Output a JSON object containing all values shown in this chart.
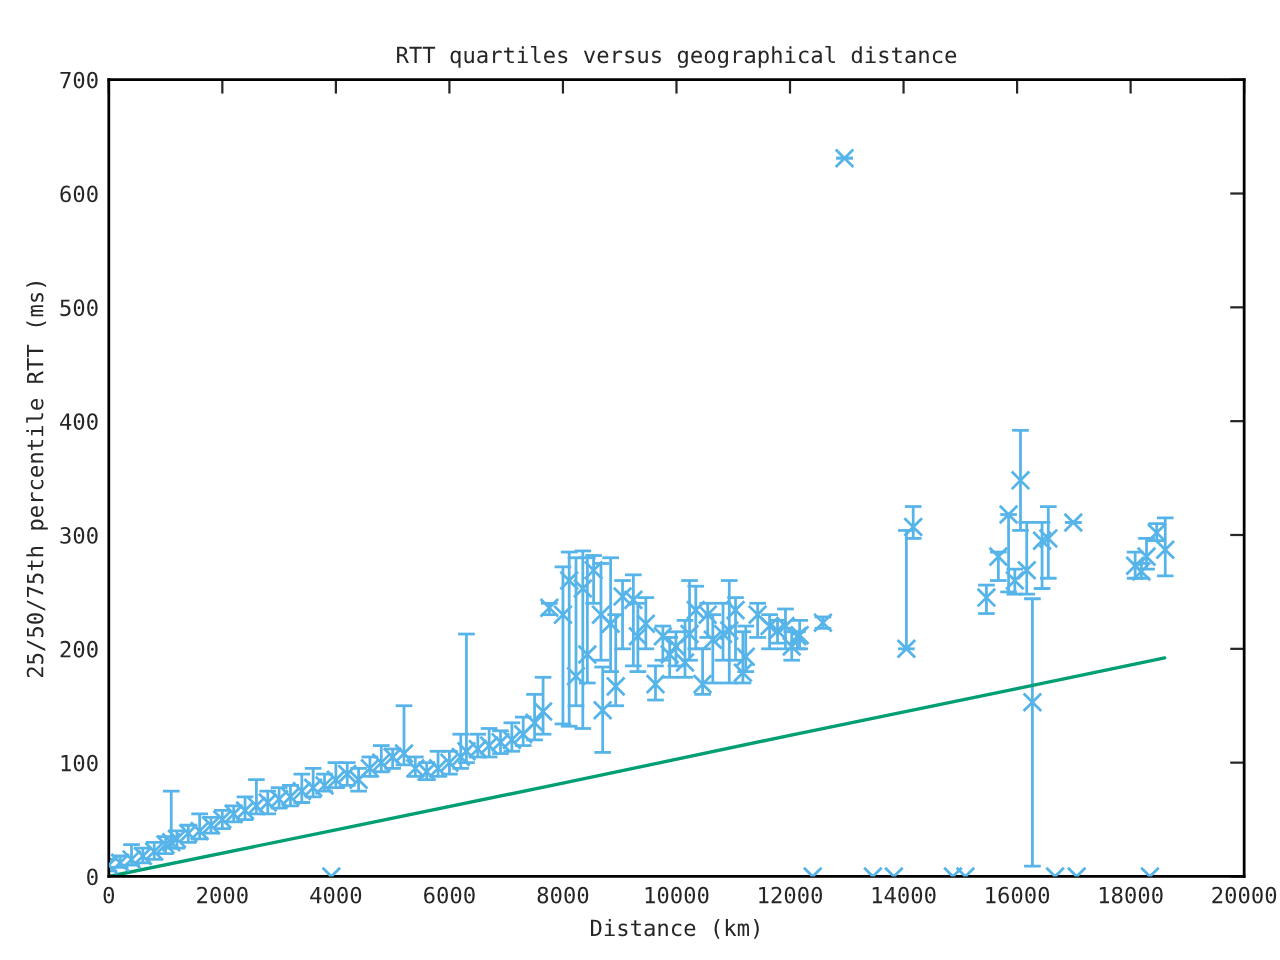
{
  "chart_data": {
    "type": "scatter",
    "title": "RTT quartiles versus geographical distance",
    "xlabel": "Distance (km)",
    "ylabel": "25/50/75th percentile RTT (ms)",
    "xlim": [
      0,
      20000
    ],
    "xticks": [
      0,
      2000,
      4000,
      6000,
      8000,
      10000,
      12000,
      14000,
      16000,
      18000,
      20000
    ],
    "ylim": [
      0,
      700
    ],
    "yticks": [
      0,
      100,
      200,
      300,
      400,
      500,
      600,
      700
    ],
    "grid": false,
    "series": [
      {
        "color": "#56b4e9",
        "marker": "cross",
        "x": [
          0,
          200,
          400,
          600,
          800,
          1000,
          1100,
          1200,
          1400,
          1600,
          1800,
          2000,
          2200,
          2400,
          2600,
          2800,
          3000,
          3200,
          3400,
          3600,
          3800,
          4000,
          4200,
          4400,
          4600,
          4800,
          5000,
          5200,
          5400,
          5600,
          5800,
          6000,
          6200,
          6300,
          6500,
          6700,
          6900,
          7100,
          7300,
          7500,
          7650,
          7760,
          8000,
          8110,
          8230,
          8350,
          8430,
          8540,
          8670,
          8700,
          8840,
          8930,
          9050,
          9240,
          9320,
          9460,
          9630,
          9760,
          9880,
          9990,
          10150,
          10230,
          10340,
          10460,
          10550,
          10640,
          10820,
          10930,
          11040,
          11170,
          11220,
          11430,
          11640,
          11780,
          11920,
          12030,
          12130,
          12170,
          12580,
          12960,
          14050,
          14170,
          15460,
          15670,
          15850,
          15960,
          16060,
          16170,
          16270,
          16440,
          16550,
          16990,
          18080,
          18190,
          18280,
          18460,
          18610,
          3920,
          12400,
          13460,
          13830,
          14870,
          15090,
          16670,
          17050,
          18340
        ],
        "values": [
          10,
          12,
          15,
          18,
          22,
          28,
          30,
          33,
          38,
          40,
          45,
          50,
          55,
          58,
          62,
          65,
          68,
          70,
          75,
          78,
          80,
          85,
          90,
          85,
          95,
          100,
          105,
          108,
          95,
          92,
          95,
          100,
          105,
          110,
          112,
          115,
          118,
          120,
          125,
          135,
          145,
          236,
          230,
          260,
          176,
          253,
          195,
          269,
          230,
          146,
          222,
          167,
          246,
          243,
          211,
          222,
          169,
          211,
          195,
          202,
          188,
          213,
          234,
          169,
          230,
          208,
          213,
          216,
          234,
          179,
          193,
          230,
          220,
          216,
          220,
          202,
          211,
          212,
          223,
          631,
          200,
          307,
          245,
          281,
          318,
          260,
          348,
          269,
          153,
          295,
          297,
          311,
          273,
          268,
          281,
          302,
          287,
          0,
          0,
          0,
          0,
          0,
          0,
          0,
          0,
          0
        ],
        "errors": [
          [
            5,
            15
          ],
          [
            8,
            18
          ],
          [
            10,
            28
          ],
          [
            12,
            25
          ],
          [
            15,
            30
          ],
          [
            20,
            35
          ],
          [
            25,
            75
          ],
          [
            25,
            40
          ],
          [
            30,
            45
          ],
          [
            33,
            55
          ],
          [
            38,
            52
          ],
          [
            42,
            58
          ],
          [
            48,
            62
          ],
          [
            50,
            70
          ],
          [
            55,
            85
          ],
          [
            55,
            75
          ],
          [
            60,
            78
          ],
          [
            62,
            80
          ],
          [
            65,
            90
          ],
          [
            70,
            95
          ],
          [
            75,
            90
          ],
          [
            78,
            100
          ],
          [
            80,
            100
          ],
          [
            75,
            95
          ],
          [
            88,
            105
          ],
          [
            92,
            115
          ],
          [
            95,
            112
          ],
          [
            98,
            150
          ],
          [
            88,
            105
          ],
          [
            85,
            100
          ],
          [
            88,
            110
          ],
          [
            90,
            110
          ],
          [
            95,
            125
          ],
          [
            100,
            213
          ],
          [
            105,
            125
          ],
          [
            105,
            130
          ],
          [
            108,
            128
          ],
          [
            110,
            135
          ],
          [
            115,
            140
          ],
          [
            120,
            160
          ],
          [
            125,
            175
          ],
          [
            230,
            240
          ],
          [
            134,
            272
          ],
          [
            132,
            285
          ],
          [
            150,
            280
          ],
          [
            130,
            286
          ],
          [
            170,
            280
          ],
          [
            240,
            282
          ],
          [
            190,
            275
          ],
          [
            109,
            184
          ],
          [
            180,
            280
          ],
          [
            150,
            230
          ],
          [
            200,
            260
          ],
          [
            185,
            265
          ],
          [
            180,
            240
          ],
          [
            200,
            245
          ],
          [
            155,
            185
          ],
          [
            190,
            220
          ],
          [
            175,
            210
          ],
          [
            185,
            215
          ],
          [
            175,
            225
          ],
          [
            190,
            260
          ],
          [
            200,
            255
          ],
          [
            160,
            200
          ],
          [
            210,
            240
          ],
          [
            170,
            230
          ],
          [
            190,
            240
          ],
          [
            170,
            260
          ],
          [
            190,
            245
          ],
          [
            170,
            215
          ],
          [
            180,
            220
          ],
          [
            210,
            240
          ],
          [
            200,
            230
          ],
          [
            205,
            225
          ],
          [
            200,
            235
          ],
          [
            190,
            215
          ],
          [
            200,
            215
          ],
          [
            200,
            225
          ],
          [
            218,
            228
          ],
          null,
          [
            200,
            304
          ],
          [
            297,
            325
          ],
          [
            231,
            256
          ],
          [
            260,
            285
          ],
          [
            250,
            318
          ],
          [
            248,
            270
          ],
          [
            304,
            392
          ],
          [
            248,
            311
          ],
          [
            9,
            244
          ],
          [
            253,
            311
          ],
          [
            262,
            325
          ],
          null,
          [
            262,
            285
          ],
          [
            262,
            275
          ],
          [
            270,
            297
          ],
          [
            295,
            310
          ],
          [
            264,
            315
          ],
          null,
          null,
          null,
          null,
          null,
          null,
          null,
          null,
          null
        ]
      },
      {
        "type": "line",
        "marker": "none",
        "color": "#009e73",
        "x": [
          0,
          4000,
          8000,
          12000,
          16000,
          18600
        ],
        "values": [
          0,
          41,
          82,
          124,
          165,
          192
        ]
      }
    ]
  }
}
